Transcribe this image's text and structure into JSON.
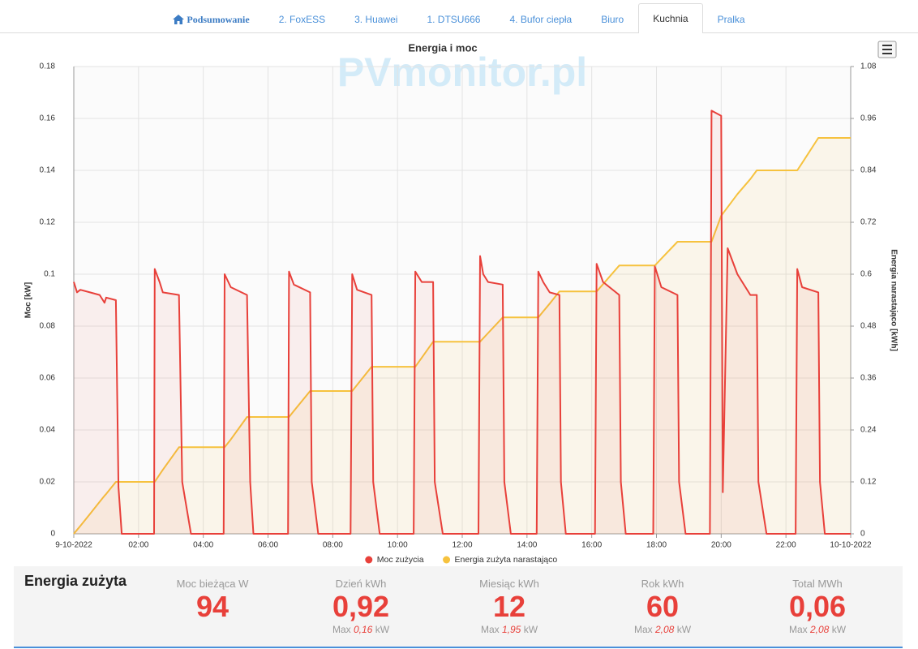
{
  "tabs": [
    {
      "label": "Podsumowanie",
      "active": false
    },
    {
      "label": "2. FoxESS",
      "active": false
    },
    {
      "label": "3. Huawei",
      "active": false
    },
    {
      "label": "1. DTSU666",
      "active": false
    },
    {
      "label": "4. Bufor ciepła",
      "active": false
    },
    {
      "label": "Biuro",
      "active": false
    },
    {
      "label": "Kuchnia",
      "active": true
    },
    {
      "label": "Pralka",
      "active": false
    }
  ],
  "chart_data": {
    "type": "line",
    "title": "Energia i moc",
    "watermark": "PVmonitor.pl",
    "y_label": "Moc [kW]",
    "y2_label": "Energia narastająco [kWh]",
    "area": true,
    "grid": true,
    "legend": "bottom",
    "xlim": [
      0,
      24
    ],
    "xticks": [
      {
        "value": 0,
        "label": "9-10-2022"
      },
      {
        "value": 2,
        "label": "02:00"
      },
      {
        "value": 4,
        "label": "04:00"
      },
      {
        "value": 6,
        "label": "06:00"
      },
      {
        "value": 8,
        "label": "08:00"
      },
      {
        "value": 10,
        "label": "10:00"
      },
      {
        "value": 12,
        "label": "12:00"
      },
      {
        "value": 14,
        "label": "14:00"
      },
      {
        "value": 16,
        "label": "16:00"
      },
      {
        "value": 18,
        "label": "18:00"
      },
      {
        "value": 20,
        "label": "20:00"
      },
      {
        "value": 22,
        "label": "22:00"
      },
      {
        "value": 24,
        "label": "10-10-2022"
      }
    ],
    "ylim": [
      0,
      0.18
    ],
    "yticks": [
      0,
      0.02,
      0.04,
      0.06,
      0.08,
      0.1,
      0.12,
      0.14,
      0.16,
      0.18
    ],
    "y2lim": [
      0,
      1.08
    ],
    "y2ticks": [
      0,
      0.12,
      0.24,
      0.36,
      0.48,
      0.6,
      0.72,
      0.84,
      0.96,
      1.08
    ],
    "x": [
      0,
      0.1,
      0.2,
      0.5,
      0.8,
      0.95,
      1.0,
      1.3,
      1.38,
      1.48,
      2.48,
      2.5,
      2.65,
      2.75,
      3.25,
      3.35,
      3.62,
      4.63,
      4.66,
      4.85,
      5.35,
      5.45,
      5.55,
      6.62,
      6.65,
      6.8,
      7.3,
      7.35,
      7.55,
      8.55,
      8.6,
      8.75,
      9.2,
      9.25,
      9.45,
      10.5,
      10.55,
      10.75,
      11.1,
      11.15,
      11.4,
      12.5,
      12.55,
      12.65,
      12.8,
      13.25,
      13.3,
      13.5,
      14.3,
      14.35,
      14.5,
      14.7,
      15.0,
      15.05,
      15.2,
      16.1,
      16.15,
      16.35,
      16.85,
      16.9,
      17.05,
      17.9,
      17.95,
      18.15,
      18.65,
      18.7,
      18.9,
      19.65,
      19.7,
      20.0,
      20.05,
      20.2,
      20.5,
      20.9,
      21.1,
      21.15,
      21.4,
      22.3,
      22.35,
      22.5,
      23.0,
      23.05,
      23.2,
      24
    ],
    "series": [
      {
        "name": "Moc zużycia",
        "color": "#e8403a",
        "axis": "y",
        "values": [
          0.097,
          0.093,
          0.094,
          0.093,
          0.092,
          0.089,
          0.091,
          0.09,
          0.018,
          0,
          0,
          0.102,
          0.097,
          0.093,
          0.092,
          0.02,
          0,
          0,
          0.1,
          0.095,
          0.092,
          0.02,
          0,
          0,
          0.101,
          0.096,
          0.093,
          0.02,
          0,
          0,
          0.1,
          0.094,
          0.092,
          0.02,
          0,
          0,
          0.101,
          0.097,
          0.097,
          0.02,
          0,
          0,
          0.107,
          0.1,
          0.097,
          0.096,
          0.02,
          0,
          0,
          0.101,
          0.097,
          0.093,
          0.092,
          0.02,
          0,
          0,
          0.104,
          0.097,
          0.092,
          0.02,
          0,
          0,
          0.103,
          0.095,
          0.092,
          0.02,
          0,
          0,
          0.163,
          0.161,
          0.016,
          0.11,
          0.1,
          0.092,
          0.092,
          0.02,
          0,
          0,
          0.102,
          0.095,
          0.093,
          0.02,
          0,
          0
        ]
      },
      {
        "name": "Energia zużyta narastająco",
        "color": "#f6c23e",
        "axis": "y2",
        "values": [
          0,
          0.009,
          0.018,
          0.046,
          0.074,
          0.088,
          0.092,
          0.12,
          0.12,
          0.12,
          0.12,
          0.12,
          0.137,
          0.148,
          0.2,
          0.2,
          0.2,
          0.2,
          0.2,
          0.218,
          0.27,
          0.27,
          0.27,
          0.27,
          0.27,
          0.284,
          0.33,
          0.33,
          0.33,
          0.33,
          0.33,
          0.344,
          0.386,
          0.386,
          0.386,
          0.386,
          0.386,
          0.407,
          0.444,
          0.444,
          0.444,
          0.444,
          0.444,
          0.452,
          0.464,
          0.5,
          0.5,
          0.5,
          0.5,
          0.5,
          0.514,
          0.532,
          0.56,
          0.56,
          0.56,
          0.56,
          0.56,
          0.577,
          0.62,
          0.62,
          0.62,
          0.62,
          0.62,
          0.636,
          0.675,
          0.675,
          0.675,
          0.675,
          0.675,
          0.735,
          0.74,
          0.755,
          0.785,
          0.82,
          0.84,
          0.84,
          0.84,
          0.84,
          0.84,
          0.857,
          0.915,
          0.915,
          0.915,
          0.915
        ]
      }
    ]
  },
  "summary": {
    "title": "Energia zużyta",
    "stats": [
      {
        "label": "Moc bieżąca W",
        "value": "94"
      },
      {
        "label": "Dzień kWh",
        "value": "0,92",
        "max_label": "Max",
        "max_value": "0,16",
        "max_unit": "kW"
      },
      {
        "label": "Miesiąc kWh",
        "value": "12",
        "max_label": "Max",
        "max_value": "1,95",
        "max_unit": "kW"
      },
      {
        "label": "Rok kWh",
        "value": "60",
        "max_label": "Max",
        "max_value": "2,08",
        "max_unit": "kW"
      },
      {
        "label": "Total MWh",
        "value": "0,06",
        "max_label": "Max",
        "max_value": "2,08",
        "max_unit": "kW"
      }
    ]
  }
}
